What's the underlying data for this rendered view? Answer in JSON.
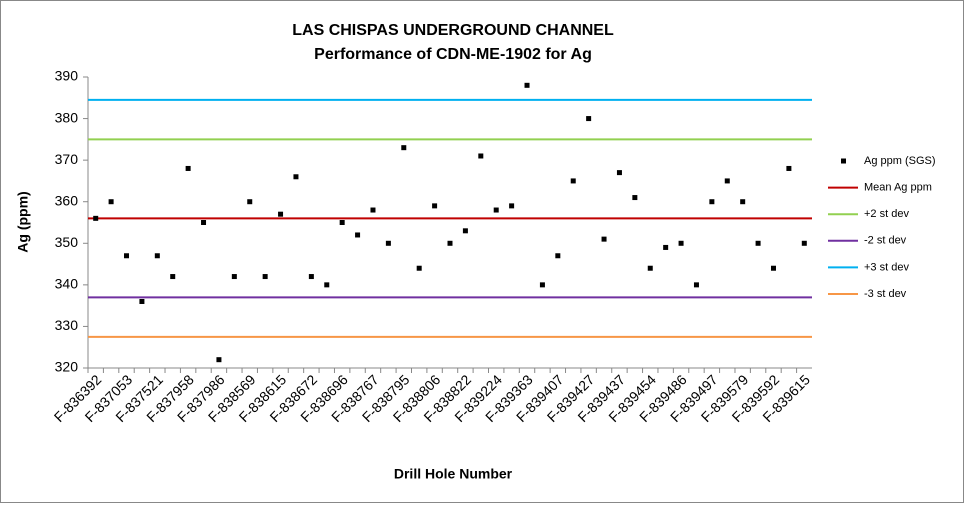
{
  "chart_data": {
    "type": "scatter",
    "title": [
      "LAS CHISPAS UNDERGROUND CHANNEL",
      "Performance of CDN-ME-1902 for Ag"
    ],
    "x_label": "Drill Hole Number",
    "y_label": "Ag (ppm)",
    "categories": [
      "F-836392",
      null,
      "F-837053",
      null,
      "F-837521",
      null,
      "F-837958",
      null,
      "F-837986",
      null,
      "F-838569",
      null,
      "F-838615",
      null,
      "F-838672",
      null,
      "F-838696",
      null,
      "F-838767",
      null,
      "F-838795",
      null,
      "F-838806",
      null,
      "F-838822",
      null,
      "F-839224",
      null,
      "F-839363",
      null,
      "F-839407",
      null,
      "F-839427",
      null,
      "F-839437",
      null,
      "F-839454",
      null,
      "F-839486",
      null,
      "F-839497",
      null,
      "F-839579",
      null,
      "F-839592",
      null,
      "F-839615"
    ],
    "series": [
      {
        "name": "Ag ppm (SGS)",
        "color": "#000000",
        "values": [
          356,
          360,
          347,
          336,
          347,
          342,
          368,
          355,
          322,
          342,
          360,
          342,
          357,
          366,
          342,
          340,
          355,
          352,
          358,
          350,
          373,
          344,
          359,
          350,
          353,
          371,
          358,
          359,
          388,
          340,
          347,
          365,
          380,
          351,
          367,
          361,
          344,
          349,
          350,
          340,
          360,
          365,
          360,
          350,
          344,
          368,
          350
        ]
      }
    ],
    "reference_lines": [
      {
        "name": "Mean Ag ppm",
        "color": "#c00000",
        "value": 356
      },
      {
        "name": "+2 st dev",
        "color": "#92d050",
        "value": 375
      },
      {
        "name": "-2 st dev",
        "color": "#7030a0",
        "value": 337
      },
      {
        "name": "+3 st dev",
        "color": "#00b0f0",
        "value": 384.5
      },
      {
        "name": "-3 st dev",
        "color": "#f79646",
        "value": 327.5
      }
    ],
    "ylim": [
      320,
      390
    ],
    "yticks": [
      320,
      330,
      340,
      350,
      360,
      370,
      380,
      390
    ],
    "legend": "right"
  }
}
